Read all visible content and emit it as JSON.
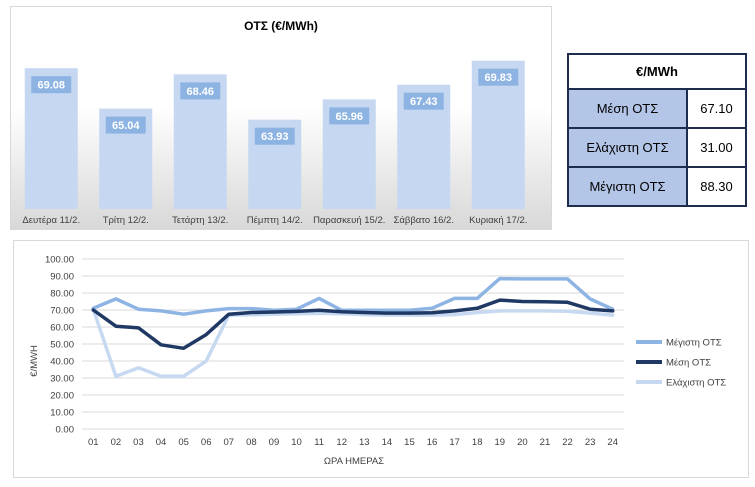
{
  "summary_table": {
    "header": "€/MWh",
    "rows": [
      {
        "label": "Μέση ΟΤΣ",
        "value": "67.10"
      },
      {
        "label": "Ελάχιστη ΟΤΣ",
        "value": "31.00"
      },
      {
        "label": "Μέγιστη ΟΤΣ",
        "value": "88.30"
      }
    ]
  },
  "colors": {
    "bar": "#c5d7f1",
    "bar_label_bg": "#8db3e2",
    "max_series": "#8eb4e3",
    "avg_series": "#1f3864",
    "min_series": "#c6d9f1",
    "grid": "#d9d9d9",
    "table_label_bg": "#b4c6e7",
    "table_border": "#1f2d4d"
  },
  "chart_data": [
    {
      "type": "bar",
      "title": "ΟΤΣ (€/MWh)",
      "categories": [
        "Δευτέρα 11/2.",
        "Τρίτη 12/2.",
        "Τετάρτη 13/2.",
        "Πέμπτη 14/2.",
        "Παρασκευή 15/2.",
        "Σάββατο 16/2.",
        "Κυριακή 17/2."
      ],
      "values": [
        69.08,
        65.04,
        68.46,
        63.93,
        65.96,
        67.43,
        69.83
      ],
      "value_labels": [
        "69.08",
        "65.04",
        "68.46",
        "63.93",
        "65.96",
        "67.43",
        "69.83"
      ]
    },
    {
      "type": "line",
      "xlabel": "ΩΡΑ ΗΜΕΡΑΣ",
      "ylabel": "€/MWH",
      "ylim": [
        0,
        100
      ],
      "yticks": [
        "0.00",
        "10.00",
        "20.00",
        "30.00",
        "40.00",
        "50.00",
        "60.00",
        "70.00",
        "80.00",
        "90.00",
        "100.00"
      ],
      "x": [
        "01",
        "02",
        "03",
        "04",
        "05",
        "06",
        "07",
        "08",
        "09",
        "10",
        "11",
        "12",
        "13",
        "14",
        "15",
        "16",
        "17",
        "18",
        "19",
        "20",
        "21",
        "22",
        "23",
        "24"
      ],
      "grid": true,
      "legend": "right",
      "series": [
        {
          "name": "Μέγιστη ΟΤΣ",
          "values": [
            71,
            76.5,
            70.5,
            69.5,
            67.5,
            69.5,
            70.8,
            70.8,
            69.8,
            70.5,
            76.8,
            69.8,
            69.8,
            69.8,
            69.8,
            71,
            76.8,
            76.8,
            88.5,
            88.3,
            88.3,
            88.3,
            76.5,
            70.5
          ]
        },
        {
          "name": "Μέση ΟΤΣ",
          "values": [
            70,
            60.5,
            59.5,
            49.5,
            47.5,
            55.5,
            67.5,
            68.5,
            68.8,
            69.2,
            69.8,
            69,
            68.5,
            68.2,
            68.2,
            68.4,
            69.5,
            71,
            75.8,
            75,
            74.8,
            74.5,
            70.5,
            69.5
          ]
        },
        {
          "name": "Ελάχιστη ΟΤΣ",
          "values": [
            70.5,
            31,
            36,
            31,
            31,
            40,
            67,
            67.2,
            67.5,
            67.8,
            68,
            67.8,
            67.3,
            67,
            67,
            67,
            67.3,
            68.5,
            69.5,
            69.5,
            69.5,
            69.3,
            68.2,
            67
          ]
        }
      ]
    }
  ]
}
